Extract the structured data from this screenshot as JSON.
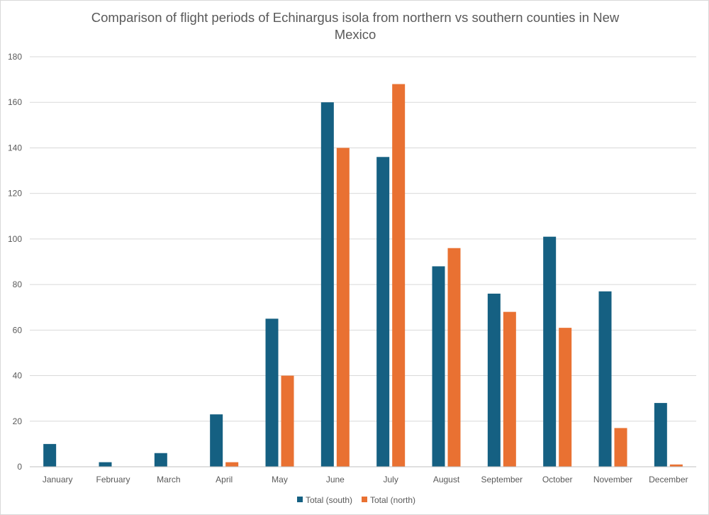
{
  "chart_data": {
    "type": "bar",
    "title": "Comparison of flight periods of Echinargus isola from northern vs southern counties in New Mexico",
    "xlabel": "",
    "ylabel": "",
    "categories": [
      "January",
      "February",
      "March",
      "April",
      "May",
      "June",
      "July",
      "August",
      "September",
      "October",
      "November",
      "December"
    ],
    "series": [
      {
        "name": "Total (south)",
        "color": "#156082",
        "values": [
          10,
          2,
          6,
          23,
          65,
          160,
          136,
          88,
          76,
          101,
          77,
          28
        ]
      },
      {
        "name": "Total (north)",
        "color": "#E97132",
        "values": [
          0,
          0,
          0,
          2,
          40,
          140,
          168,
          96,
          68,
          61,
          17,
          1
        ]
      }
    ],
    "ylim": [
      0,
      180
    ],
    "yticks": [
      0,
      20,
      40,
      60,
      80,
      100,
      120,
      140,
      160,
      180
    ],
    "grid": true,
    "legend_position": "bottom"
  }
}
